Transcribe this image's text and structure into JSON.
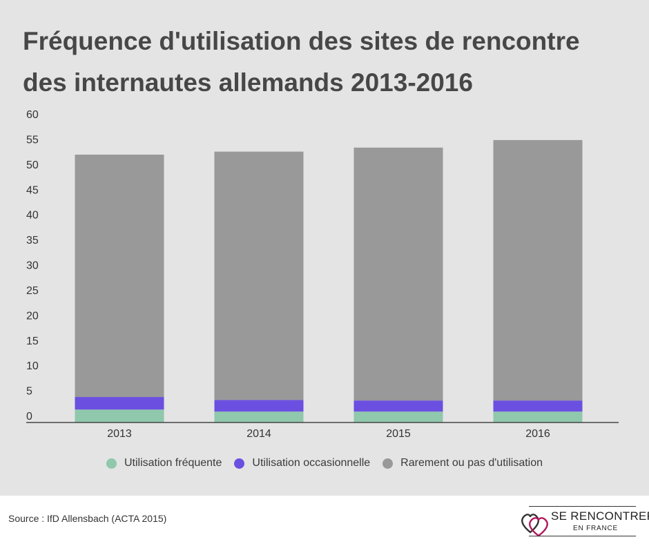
{
  "chart_data": {
    "type": "bar",
    "stacked": true,
    "title": "Fréquence d'utilisation des sites de rencontre des internautes allemands 2013-2016",
    "categories": [
      "2013",
      "2014",
      "2015",
      "2016"
    ],
    "series": [
      {
        "name": "Utilisation fréquente",
        "color": "#8fc8ac",
        "values": [
          1.2,
          0.8,
          0.8,
          0.8
        ]
      },
      {
        "name": "Utilisation occasionnelle",
        "color": "#6b4fe0",
        "values": [
          2.5,
          2.3,
          2.2,
          2.2
        ]
      },
      {
        "name": "Rarement ou pas d'utilisation",
        "color": "#999999",
        "values": [
          48.2,
          49.4,
          50.3,
          51.8
        ]
      }
    ],
    "yticks": [
      "0",
      "5",
      "10",
      "15",
      "20",
      "25",
      "30",
      "35",
      "40",
      "45",
      "50",
      "55",
      "60"
    ],
    "ylim": [
      0,
      60
    ],
    "grid": false,
    "legend_position": "bottom-center"
  },
  "footer": {
    "source": "Source : IfD Allensbach (ACTA 2015)"
  },
  "logo": {
    "line1": "SE RENCONTRER",
    "line2": "EN FRANCE",
    "colors": {
      "heart_dark": "#333333",
      "heart_accent": "#b2175c"
    }
  }
}
